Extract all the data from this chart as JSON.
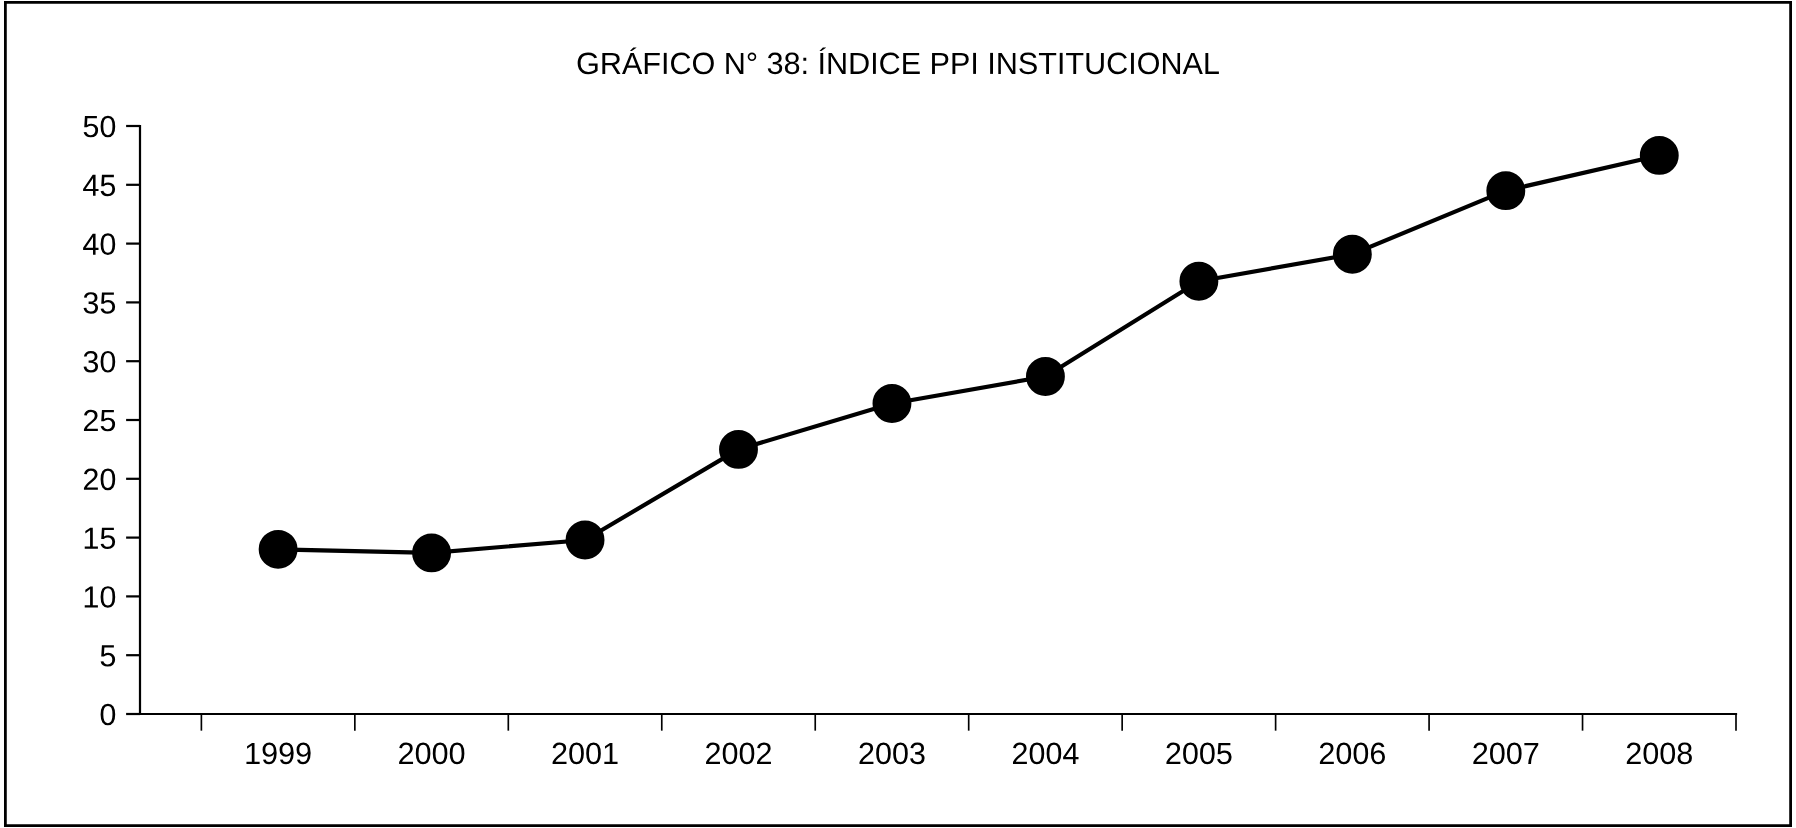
{
  "chart_data": {
    "type": "line",
    "title": "GRÁFICO N° 38: ÍNDICE PPI INSTITUCIONAL",
    "categories": [
      "1999",
      "2000",
      "2001",
      "2002",
      "2003",
      "2004",
      "2005",
      "2006",
      "2007",
      "2008"
    ],
    "series": [
      {
        "color": "#000000",
        "values": [
          14.0,
          13.7,
          14.8,
          22.5,
          26.4,
          28.7,
          36.8,
          39.1,
          44.5,
          47.5
        ]
      }
    ],
    "ylim": [
      0,
      50
    ],
    "yticks": [
      0,
      5,
      10,
      15,
      20,
      25,
      30,
      35,
      40,
      45,
      50
    ],
    "grid": false,
    "legend": false,
    "marker": "circle",
    "line_style": "solid"
  }
}
